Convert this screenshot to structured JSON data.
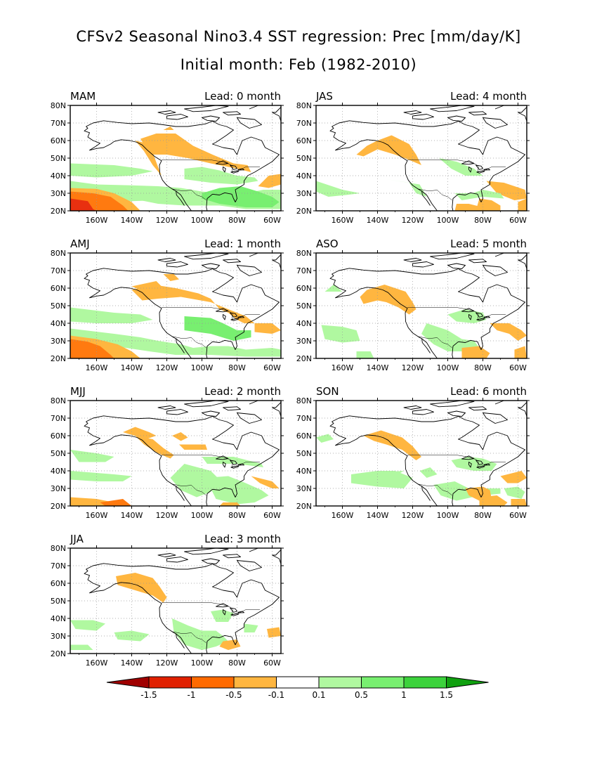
{
  "title": "CFSv2 Seasonal Nino3.4 SST regression: Prec [mm/day/K]",
  "subtitle": "Initial month: Feb (1982-2010)",
  "lat_labels": [
    "20N",
    "30N",
    "40N",
    "50N",
    "60N",
    "70N",
    "80N"
  ],
  "lon_labels": [
    "160W",
    "140W",
    "120W",
    "100W",
    "80W",
    "60W"
  ],
  "panels": [
    {
      "season": "MAM",
      "lead": "Lead: 0 month"
    },
    {
      "season": "JAS",
      "lead": "Lead: 4 month"
    },
    {
      "season": "AMJ",
      "lead": "Lead: 1 month"
    },
    {
      "season": "ASO",
      "lead": "Lead: 5 month"
    },
    {
      "season": "MJJ",
      "lead": "Lead: 2 month"
    },
    {
      "season": "SON",
      "lead": "Lead: 6 month"
    },
    {
      "season": "JJA",
      "lead": "Lead: 3 month"
    }
  ],
  "colorbar": {
    "labels": [
      "-1.5",
      "-1",
      "-0.5",
      "-0.1",
      "0.1",
      "0.5",
      "1",
      "1.5"
    ],
    "colors": [
      "#a00000",
      "#e02000",
      "#ff6a00",
      "#ffb640",
      "#ffffff",
      "#b0f8a0",
      "#78ef70",
      "#3cd23c",
      "#10a010"
    ]
  },
  "palette": {
    "dry_light": "#ffb640",
    "dry_mid": "#ff7a10",
    "dry_strong": "#e83010",
    "wet_light": "#b0f8a0",
    "wet_mid": "#78ef70",
    "wet_strong": "#3cd23c"
  }
}
